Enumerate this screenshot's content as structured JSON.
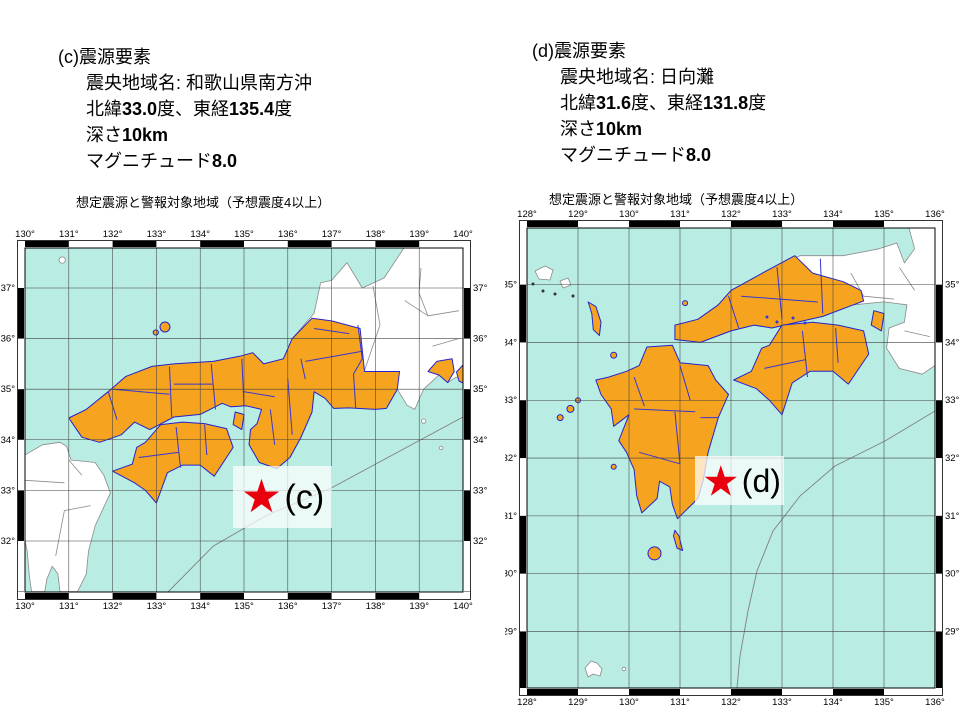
{
  "colors": {
    "sea": "#b9ece2",
    "warning": "#f6a41f",
    "pref_border": "#3636d2",
    "coast_blue": "#2424cc",
    "coast_gray": "#8a8a8a",
    "grid": "#404040",
    "frame": "#000000",
    "star": "#e8000f",
    "trough": "#808080",
    "label_box": "rgba(255,255,255,0.72)"
  },
  "panels": [
    {
      "id": "c",
      "heading": "(c)震源要素",
      "info_lines": [
        [
          {
            "t": "震央地域名: 和歌山県南方沖",
            "b": false
          }
        ],
        [
          {
            "t": "北緯",
            "b": false
          },
          {
            "t": "33.0",
            "b": true
          },
          {
            "t": "度、東経",
            "b": false
          },
          {
            "t": "135.4",
            "b": true
          },
          {
            "t": "度",
            "b": false
          }
        ],
        [
          {
            "t": "深さ",
            "b": false
          },
          {
            "t": "10km",
            "b": true
          }
        ],
        [
          {
            "t": "マグニチュード",
            "b": false
          },
          {
            "t": "8.0",
            "b": true
          }
        ]
      ],
      "map_title": "想定震源と警報対象地域（予想震度4以上）",
      "epicenter": {
        "name": "和歌山県南方沖",
        "lon": 135.4,
        "lat": 33.0,
        "depth_km": 10,
        "magnitude": 8.0,
        "label": "(c)"
      },
      "lon_labels": [
        "130°",
        "131°",
        "132°",
        "133°",
        "134°",
        "135°",
        "136°",
        "137°",
        "138°",
        "139°",
        "140°"
      ],
      "lat_labels": [
        "37°",
        "36°",
        "35°",
        "34°",
        "33°",
        "32°"
      ]
    },
    {
      "id": "d",
      "heading": "(d)震源要素",
      "info_lines": [
        [
          {
            "t": "震央地域名: 日向灘",
            "b": false
          }
        ],
        [
          {
            "t": "北緯",
            "b": false
          },
          {
            "t": "31.6",
            "b": true
          },
          {
            "t": "度、東経",
            "b": false
          },
          {
            "t": "131.8",
            "b": true
          },
          {
            "t": "度",
            "b": false
          }
        ],
        [
          {
            "t": "深さ",
            "b": false
          },
          {
            "t": "10km",
            "b": true
          }
        ],
        [
          {
            "t": "マグニチュード",
            "b": false
          },
          {
            "t": "8.0",
            "b": true
          }
        ]
      ],
      "map_title": "想定震源と警報対象地域（予想震度4以上）",
      "epicenter": {
        "name": "日向灘",
        "lon": 131.8,
        "lat": 31.6,
        "depth_km": 10,
        "magnitude": 8.0,
        "label": "(d)"
      },
      "lon_labels": [
        "128°",
        "129°",
        "130°",
        "131°",
        "132°",
        "133°",
        "134°",
        "135°",
        "136°"
      ],
      "lat_labels": [
        "35°",
        "34°",
        "33°",
        "32°",
        "31°",
        "30°",
        "29°"
      ]
    }
  ]
}
